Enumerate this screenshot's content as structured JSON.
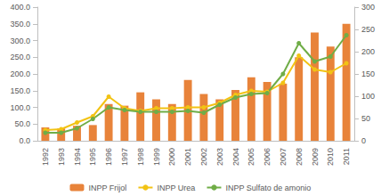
{
  "chart_data": {
    "type": "bar",
    "categories": [
      "1992",
      "1993",
      "1994",
      "1995",
      "1996",
      "1997",
      "1998",
      "1999",
      "2000",
      "2001",
      "2002",
      "2003",
      "2004",
      "2005",
      "2006",
      "2007",
      "2008",
      "2009",
      "2010",
      "2011"
    ],
    "series": [
      {
        "name": "INPP Frijol",
        "type": "bar",
        "color": "#E8833A",
        "values": [
          40,
          37,
          45,
          47,
          110,
          105,
          145,
          124,
          110,
          182,
          140,
          124,
          152,
          190,
          176,
          171,
          250,
          324,
          282,
          350
        ]
      },
      {
        "name": "INPP Urea",
        "type": "line",
        "axis": "y2",
        "color": "#F2C314",
        "marker": "circle",
        "values": [
          24,
          26,
          41,
          55,
          99,
          73,
          67,
          73,
          73,
          75,
          75,
          85,
          103,
          112,
          110,
          130,
          191,
          160,
          154,
          174
        ]
      },
      {
        "name": "INPP Sulfato de amonio",
        "type": "line",
        "axis": "y2",
        "color": "#70AD47",
        "marker": "circle",
        "values": [
          18,
          18,
          28,
          49,
          75,
          69,
          65,
          65,
          65,
          67,
          63,
          81,
          97,
          105,
          107,
          150,
          219,
          178,
          189,
          237
        ]
      }
    ],
    "ylim": [
      0,
      400
    ],
    "yticks": [
      {
        "value": 0,
        "label": "0.0"
      },
      {
        "value": 50,
        "label": "50.0"
      },
      {
        "value": 100,
        "label": "100.0"
      },
      {
        "value": 150,
        "label": "150.0"
      },
      {
        "value": 200,
        "label": "200.0"
      },
      {
        "value": 250,
        "label": "250.0"
      },
      {
        "value": 300,
        "label": "300.0"
      },
      {
        "value": 350,
        "label": "350.0"
      },
      {
        "value": 400,
        "label": "400.0"
      }
    ],
    "y2lim": [
      0,
      300
    ],
    "y2ticks": [
      0,
      50,
      100,
      150,
      200,
      250,
      300
    ],
    "grid": false,
    "legend": "bottom"
  }
}
